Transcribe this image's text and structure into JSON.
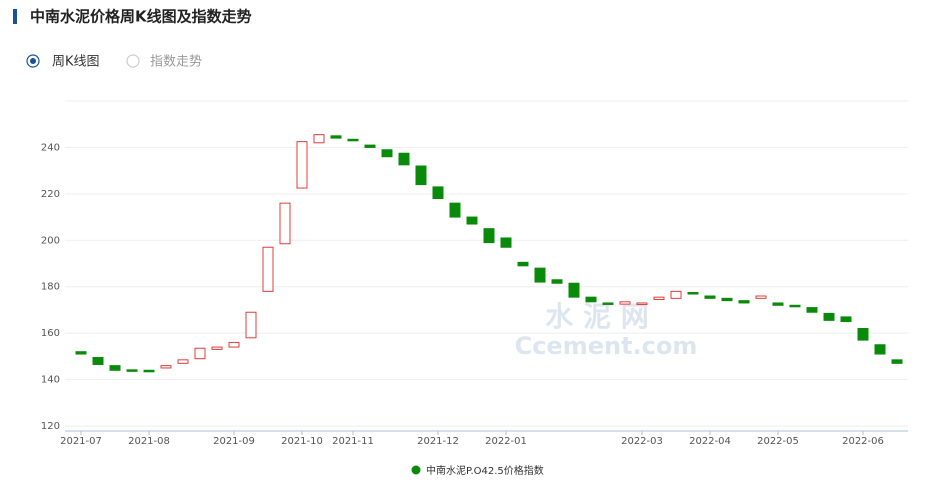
{
  "header": {
    "title": "中南水泥价格周K线图及指数走势"
  },
  "tabs": [
    "周K线图",
    "指数走势"
  ],
  "watermark": [
    "水 泥 网",
    "Ccement.com"
  ],
  "chart_data": {
    "type": "candlestick",
    "categories": [
      "2021-07",
      null,
      null,
      null,
      "2021-08",
      null,
      null,
      null,
      null,
      "2021-09",
      null,
      null,
      null,
      "2021-10",
      null,
      null,
      "2021-11",
      null,
      null,
      null,
      null,
      "2021-12",
      null,
      null,
      null,
      "2022-01",
      null,
      null,
      null,
      null,
      null,
      null,
      null,
      "2022-03",
      null,
      null,
      null,
      "2022-04",
      null,
      null,
      null,
      "2022-05",
      null,
      null,
      null,
      null,
      "2022-06",
      null,
      null
    ],
    "series": [
      {
        "name": "中南水泥P.O42.5价格指数",
        "color": "#0a8a0a",
        "up_color": "#e03c3c",
        "open": [
          152,
          149.5,
          146,
          144.2,
          144,
          145,
          147,
          149,
          153,
          154,
          158,
          178,
          198.5,
          222.5,
          242,
          245,
          243.5,
          241,
          239,
          237.5,
          232,
          223,
          216,
          210,
          205,
          201,
          190.5,
          188,
          183,
          181.5,
          175.5,
          173,
          172.5,
          172.5,
          174.5,
          175,
          177.5,
          176,
          175,
          174,
          175,
          173,
          172,
          171,
          168.5,
          167,
          162,
          155,
          148.5
        ],
        "close": [
          151,
          146.5,
          144,
          143.8,
          143.7,
          146,
          148.5,
          153.5,
          154,
          156,
          169,
          197,
          216,
          242.5,
          245.5,
          244,
          243,
          240,
          236,
          232.5,
          224,
          218,
          210,
          207,
          199,
          197,
          189,
          182,
          181.5,
          175.5,
          173.5,
          172.5,
          173.5,
          173,
          175.5,
          178,
          177,
          175,
          174,
          173,
          176,
          172,
          171.5,
          169,
          165.5,
          165,
          157,
          151,
          147
        ]
      }
    ],
    "ylim": [
      120,
      260
    ],
    "yticks": [
      120,
      140,
      160,
      180,
      200,
      220,
      240
    ],
    "grid": true
  }
}
